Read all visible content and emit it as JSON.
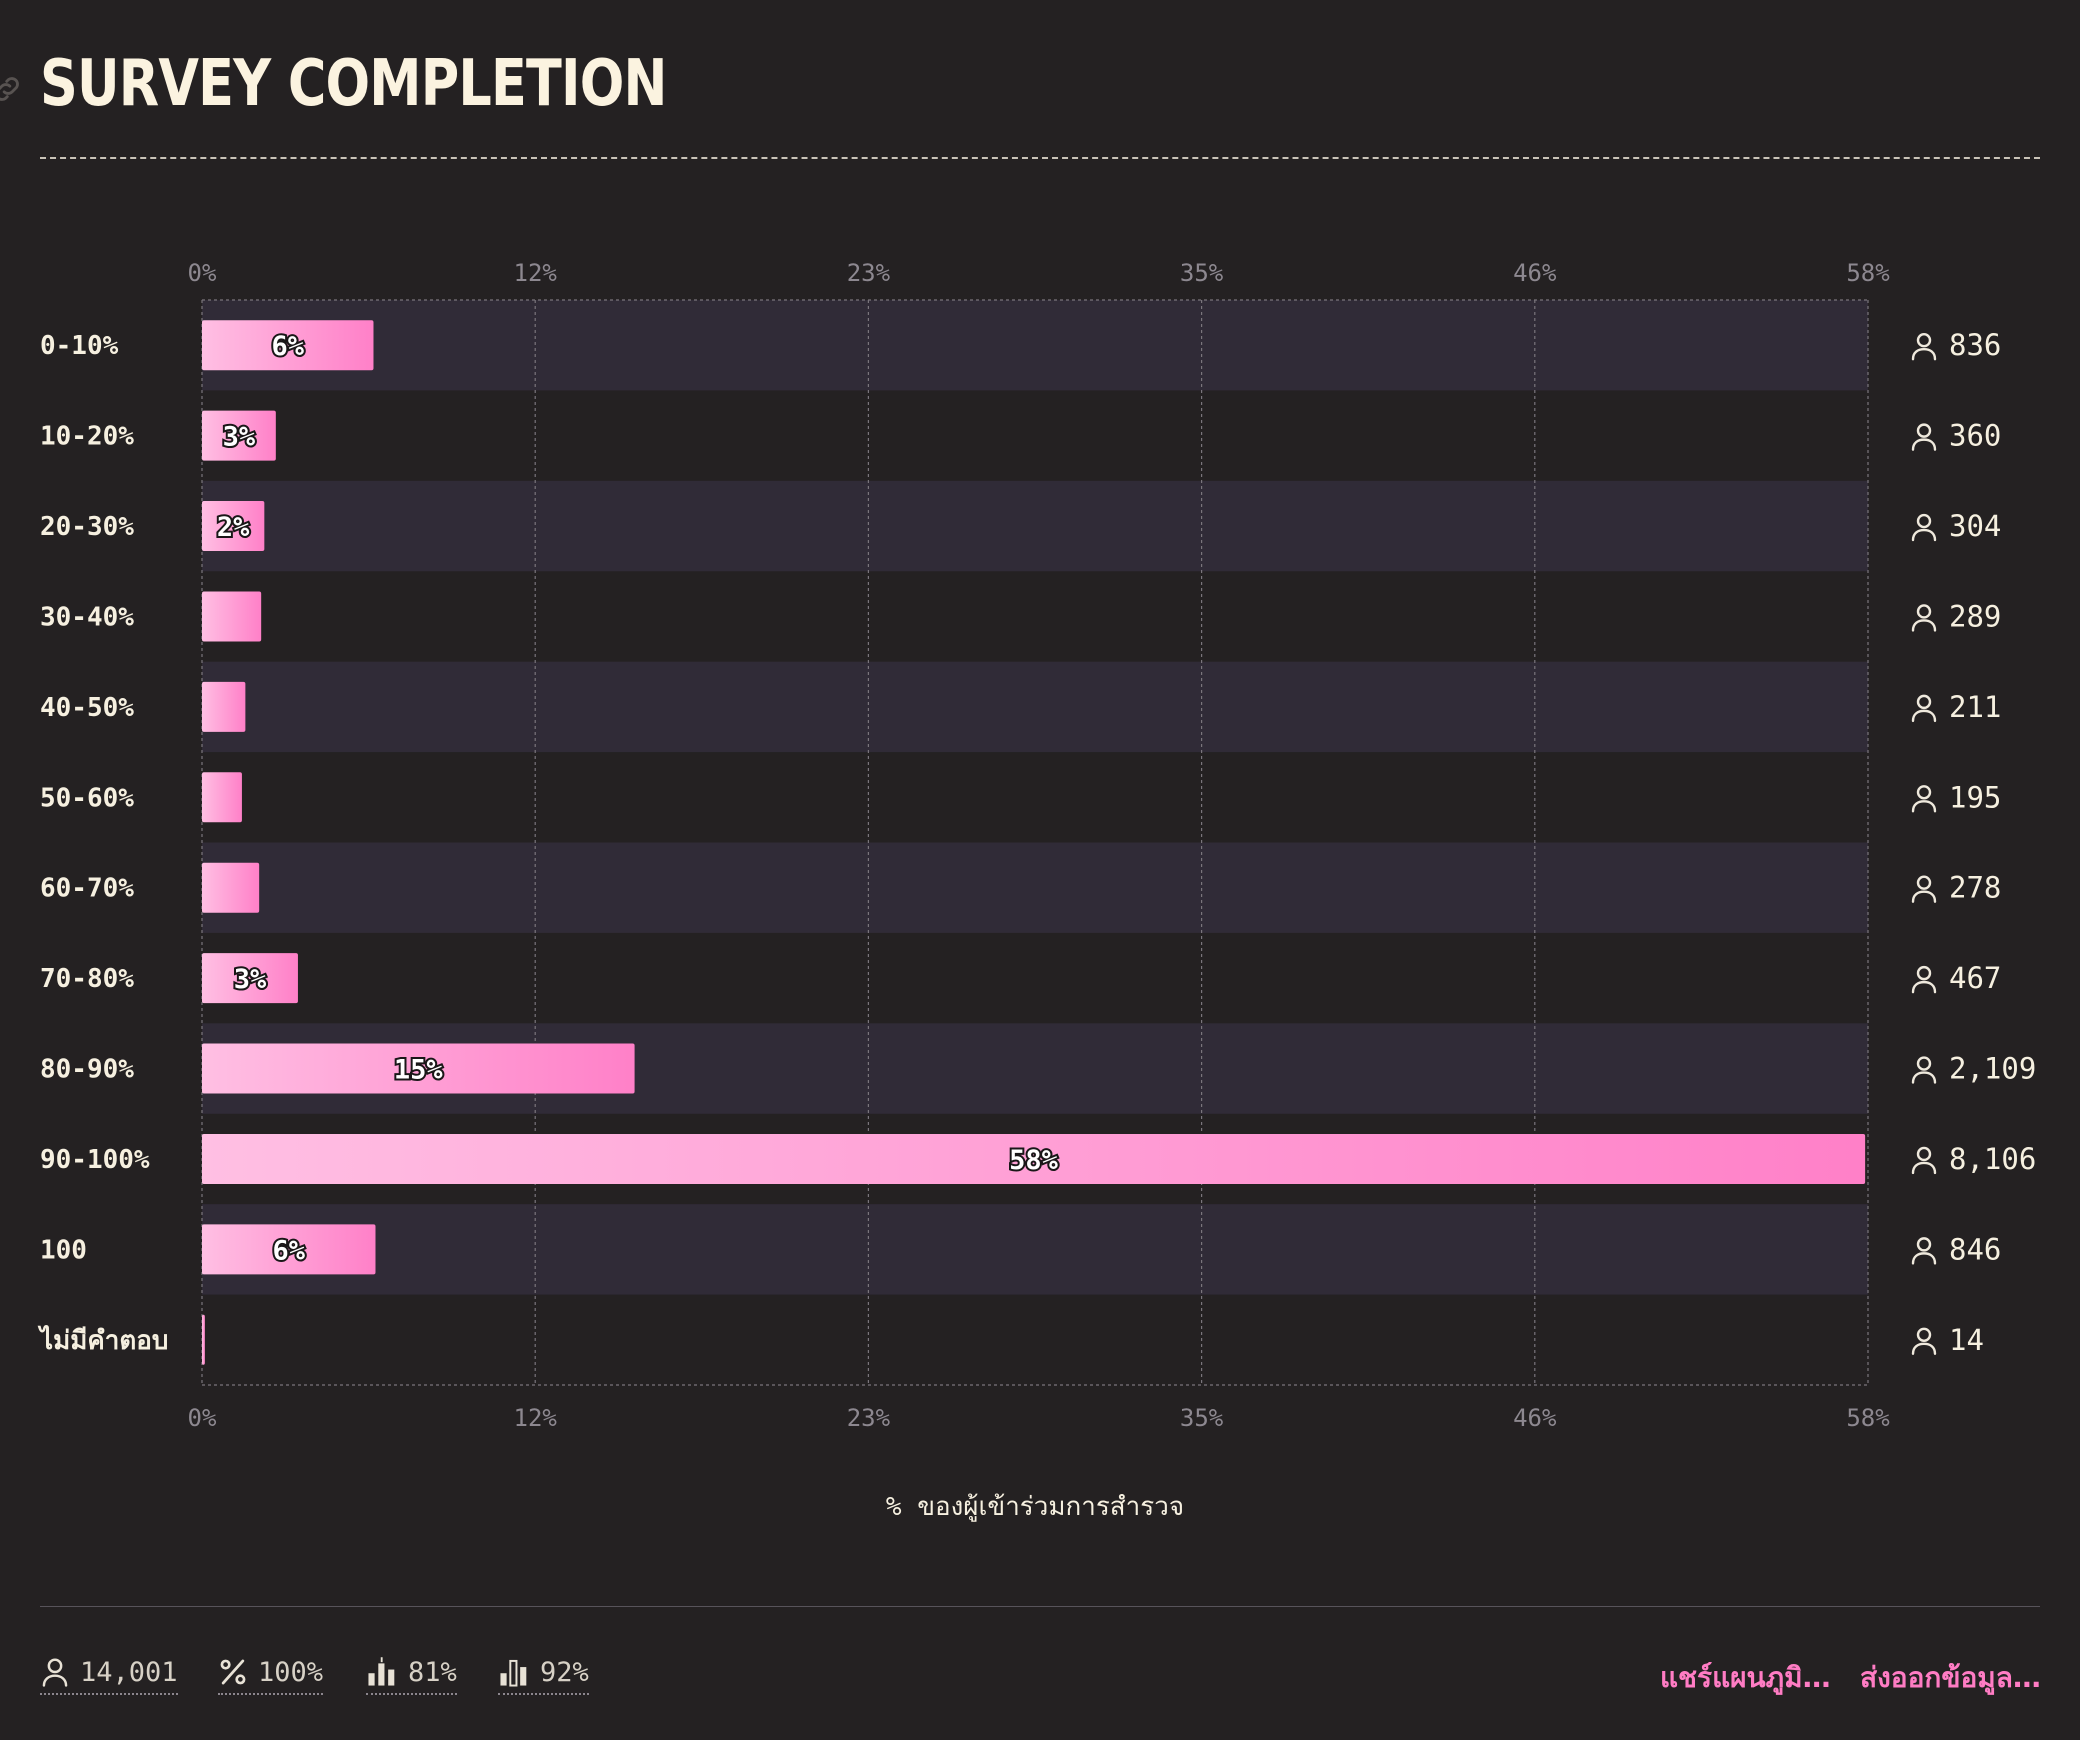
{
  "title": "SURVEY COMPLETION",
  "chart_data": {
    "type": "bar",
    "orientation": "horizontal",
    "categories": [
      "0-10%",
      "10-20%",
      "20-30%",
      "30-40%",
      "40-50%",
      "50-60%",
      "60-70%",
      "70-80%",
      "80-90%",
      "90-100%",
      "100",
      "ไม่มีคำตอบ"
    ],
    "values": [
      5.97,
      2.57,
      2.17,
      2.06,
      1.51,
      1.39,
      1.99,
      3.34,
      15.06,
      57.9,
      6.04,
      0.1
    ],
    "value_labels": [
      "6%",
      "3%",
      "2%",
      "",
      "",
      "",
      "",
      "3%",
      "15%",
      "58%",
      "6%",
      ""
    ],
    "counts": [
      "836",
      "360",
      "304",
      "289",
      "211",
      "195",
      "278",
      "467",
      "2,109",
      "8,106",
      "846",
      "14"
    ],
    "x_ticks": [
      "0%",
      "12%",
      "23%",
      "35%",
      "46%",
      "58%"
    ],
    "xlim": [
      0,
      58
    ],
    "xlabel": "% ของผู้เข้าร่วมการสำรวจ",
    "grid": true,
    "colors": {
      "bar_start": "#ffbfe3",
      "bar_end": "#ff80c8",
      "band": "#302b37",
      "background": "#242122"
    }
  },
  "footer": {
    "stats": [
      {
        "icon": "person-icon",
        "value": "14,001"
      },
      {
        "icon": "percent-icon",
        "value": "100%"
      },
      {
        "icon": "bar-mean-icon",
        "value": "81%"
      },
      {
        "icon": "bar-median-icon",
        "value": "92%"
      }
    ],
    "share_label": "แชร์แผนภูมิ…",
    "export_label": "ส่งออกข้อมูล…",
    "accent": "#ff7cc4"
  }
}
